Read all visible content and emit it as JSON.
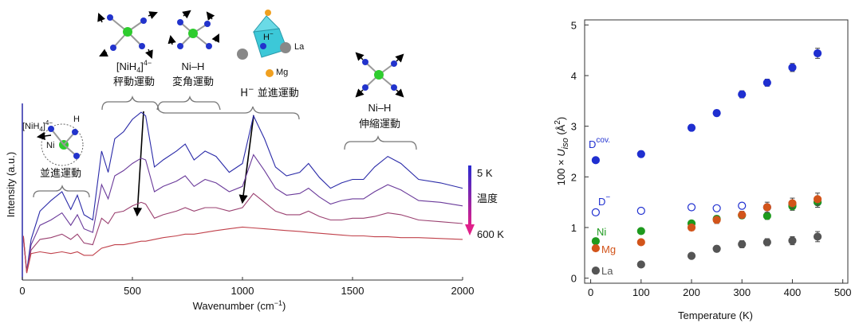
{
  "chart_data": [
    {
      "type": "line",
      "ylabel": "Intensity (a.u.)",
      "xlabel": [
        "Wavenumber (cm",
        "−1",
        ")"
      ],
      "xlim": [
        0,
        2000
      ],
      "xticks": [
        0,
        500,
        1000,
        1500,
        2000
      ],
      "ylim": [
        0,
        10
      ],
      "x": [
        5,
        20,
        40,
        80,
        130,
        180,
        220,
        250,
        280,
        320,
        360,
        390,
        420,
        460,
        500,
        540,
        560,
        600,
        640,
        700,
        740,
        780,
        830,
        880,
        940,
        1000,
        1050,
        1100,
        1150,
        1200,
        1260,
        1300,
        1350,
        1400,
        1450,
        1500,
        1550,
        1600,
        1660,
        1720,
        1800,
        1900,
        2000
      ],
      "series": [
        {
          "color": "#2a2aa8",
          "values": [
            2.3,
            0.5,
            2.3,
            3.9,
            4.5,
            5.0,
            4.0,
            4.8,
            3.7,
            3.4,
            7.3,
            6.1,
            8.0,
            8.4,
            9.1,
            9.5,
            9.3,
            6.4,
            6.8,
            7.3,
            7.7,
            6.8,
            7.3,
            7.0,
            6.1,
            6.6,
            9.3,
            8.0,
            6.4,
            5.9,
            6.1,
            6.6,
            5.8,
            5.2,
            5.5,
            5.7,
            5.7,
            6.4,
            7.0,
            6.6,
            5.7,
            5.5,
            5.2
          ]
        },
        {
          "color": "#6a3a9a",
          "values": [
            2.4,
            0.5,
            2.0,
            3.1,
            3.4,
            3.8,
            3.1,
            3.7,
            2.9,
            2.7,
            5.4,
            4.6,
            5.9,
            6.2,
            6.6,
            6.9,
            6.8,
            5.0,
            5.3,
            5.6,
            5.9,
            5.3,
            5.7,
            5.5,
            5.0,
            5.3,
            7.1,
            6.2,
            5.2,
            4.8,
            4.9,
            5.2,
            4.7,
            4.3,
            4.5,
            4.6,
            4.6,
            5.0,
            5.4,
            5.1,
            4.5,
            4.4,
            4.2
          ]
        },
        {
          "color": "#9a4070",
          "values": [
            2.4,
            0.4,
            1.7,
            2.3,
            2.4,
            2.6,
            2.3,
            2.6,
            2.1,
            2.0,
            3.5,
            3.2,
            3.8,
            3.9,
            4.2,
            4.4,
            4.3,
            3.5,
            3.7,
            3.9,
            4.1,
            3.9,
            4.1,
            4.1,
            3.9,
            4.1,
            4.9,
            4.4,
            3.9,
            3.7,
            3.7,
            3.9,
            3.6,
            3.4,
            3.4,
            3.5,
            3.5,
            3.6,
            3.8,
            3.7,
            3.4,
            3.3,
            3.2
          ]
        },
        {
          "color": "#c0404a",
          "values": [
            2.5,
            0.4,
            1.5,
            1.6,
            1.5,
            1.6,
            1.5,
            1.6,
            1.4,
            1.4,
            1.8,
            1.9,
            2.0,
            2.0,
            2.1,
            2.2,
            2.2,
            2.3,
            2.4,
            2.5,
            2.6,
            2.6,
            2.7,
            2.8,
            2.9,
            3.0,
            2.95,
            2.9,
            2.85,
            2.8,
            2.75,
            2.7,
            2.65,
            2.6,
            2.55,
            2.5,
            2.5,
            2.45,
            2.45,
            2.4,
            2.4,
            2.35,
            2.3
          ]
        }
      ],
      "annotations": {
        "nih4_a": [
          "[NiH",
          "4",
          "]",
          "4−"
        ],
        "ni": "Ni",
        "h": "H",
        "trans": "並進運動",
        "nih4_b": [
          "[NiH",
          "4",
          "]",
          "4−"
        ],
        "lib": "秤動運動",
        "nih_bend": "Ni–H",
        "bend": "変角運動",
        "h_trans": [
          "H",
          "−",
          " 並進運動"
        ],
        "la": "La",
        "hminus": [
          "H",
          "−"
        ],
        "mg": "Mg",
        "nih_str": "Ni–H",
        "str": "伸縮運動",
        "t_high": "5 K",
        "temp": "温度",
        "t_low": "600 K"
      }
    },
    {
      "type": "scatter",
      "xlabel": "Temperature (K)",
      "ylabel": [
        "100 × ",
        "U",
        "iso",
        " (Å",
        "2",
        ")"
      ],
      "xlim": [
        -12,
        510
      ],
      "xticks": [
        0,
        100,
        200,
        300,
        400,
        500
      ],
      "ylim": [
        -0.1,
        5.1
      ],
      "yticks": [
        0,
        1,
        2,
        3,
        4,
        5
      ],
      "x": [
        10,
        100,
        200,
        250,
        300,
        350,
        400,
        450
      ],
      "series": [
        {
          "name": "D",
          "name_sup": "cov.",
          "color": "#1f2fd0",
          "filled": true,
          "values": [
            2.33,
            2.45,
            2.97,
            3.26,
            3.63,
            3.86,
            4.16,
            4.44
          ],
          "errors": [
            0.05,
            0.06,
            0.06,
            0.06,
            0.07,
            0.07,
            0.08,
            0.1
          ]
        },
        {
          "name": "D",
          "name_sup": "−",
          "color": "#1f2fd0",
          "filled": false,
          "values": [
            1.3,
            1.33,
            1.4,
            1.38,
            1.43,
            1.4,
            1.45,
            1.5
          ],
          "errors": [
            0.03,
            0.03,
            0.04,
            0.04,
            0.05,
            0.06,
            0.08,
            0.1
          ]
        },
        {
          "name": "Ni",
          "color": "#1e9a1e",
          "filled": true,
          "values": [
            0.73,
            0.93,
            1.08,
            1.17,
            1.24,
            1.23,
            1.42,
            1.5
          ],
          "errors": [
            0.03,
            0.04,
            0.05,
            0.06,
            0.06,
            0.07,
            0.08,
            0.1
          ]
        },
        {
          "name": "Mg",
          "color": "#d2541a",
          "filled": true,
          "values": [
            0.59,
            0.71,
            1.0,
            1.15,
            1.25,
            1.4,
            1.48,
            1.56
          ],
          "errors": [
            0.04,
            0.05,
            0.06,
            0.07,
            0.07,
            0.1,
            0.1,
            0.12
          ]
        },
        {
          "name": "La",
          "color": "#555555",
          "filled": true,
          "values": [
            0.15,
            0.27,
            0.44,
            0.58,
            0.67,
            0.71,
            0.74,
            0.82
          ],
          "errors": [
            0.03,
            0.04,
            0.05,
            0.06,
            0.07,
            0.07,
            0.08,
            0.1
          ]
        }
      ]
    }
  ]
}
